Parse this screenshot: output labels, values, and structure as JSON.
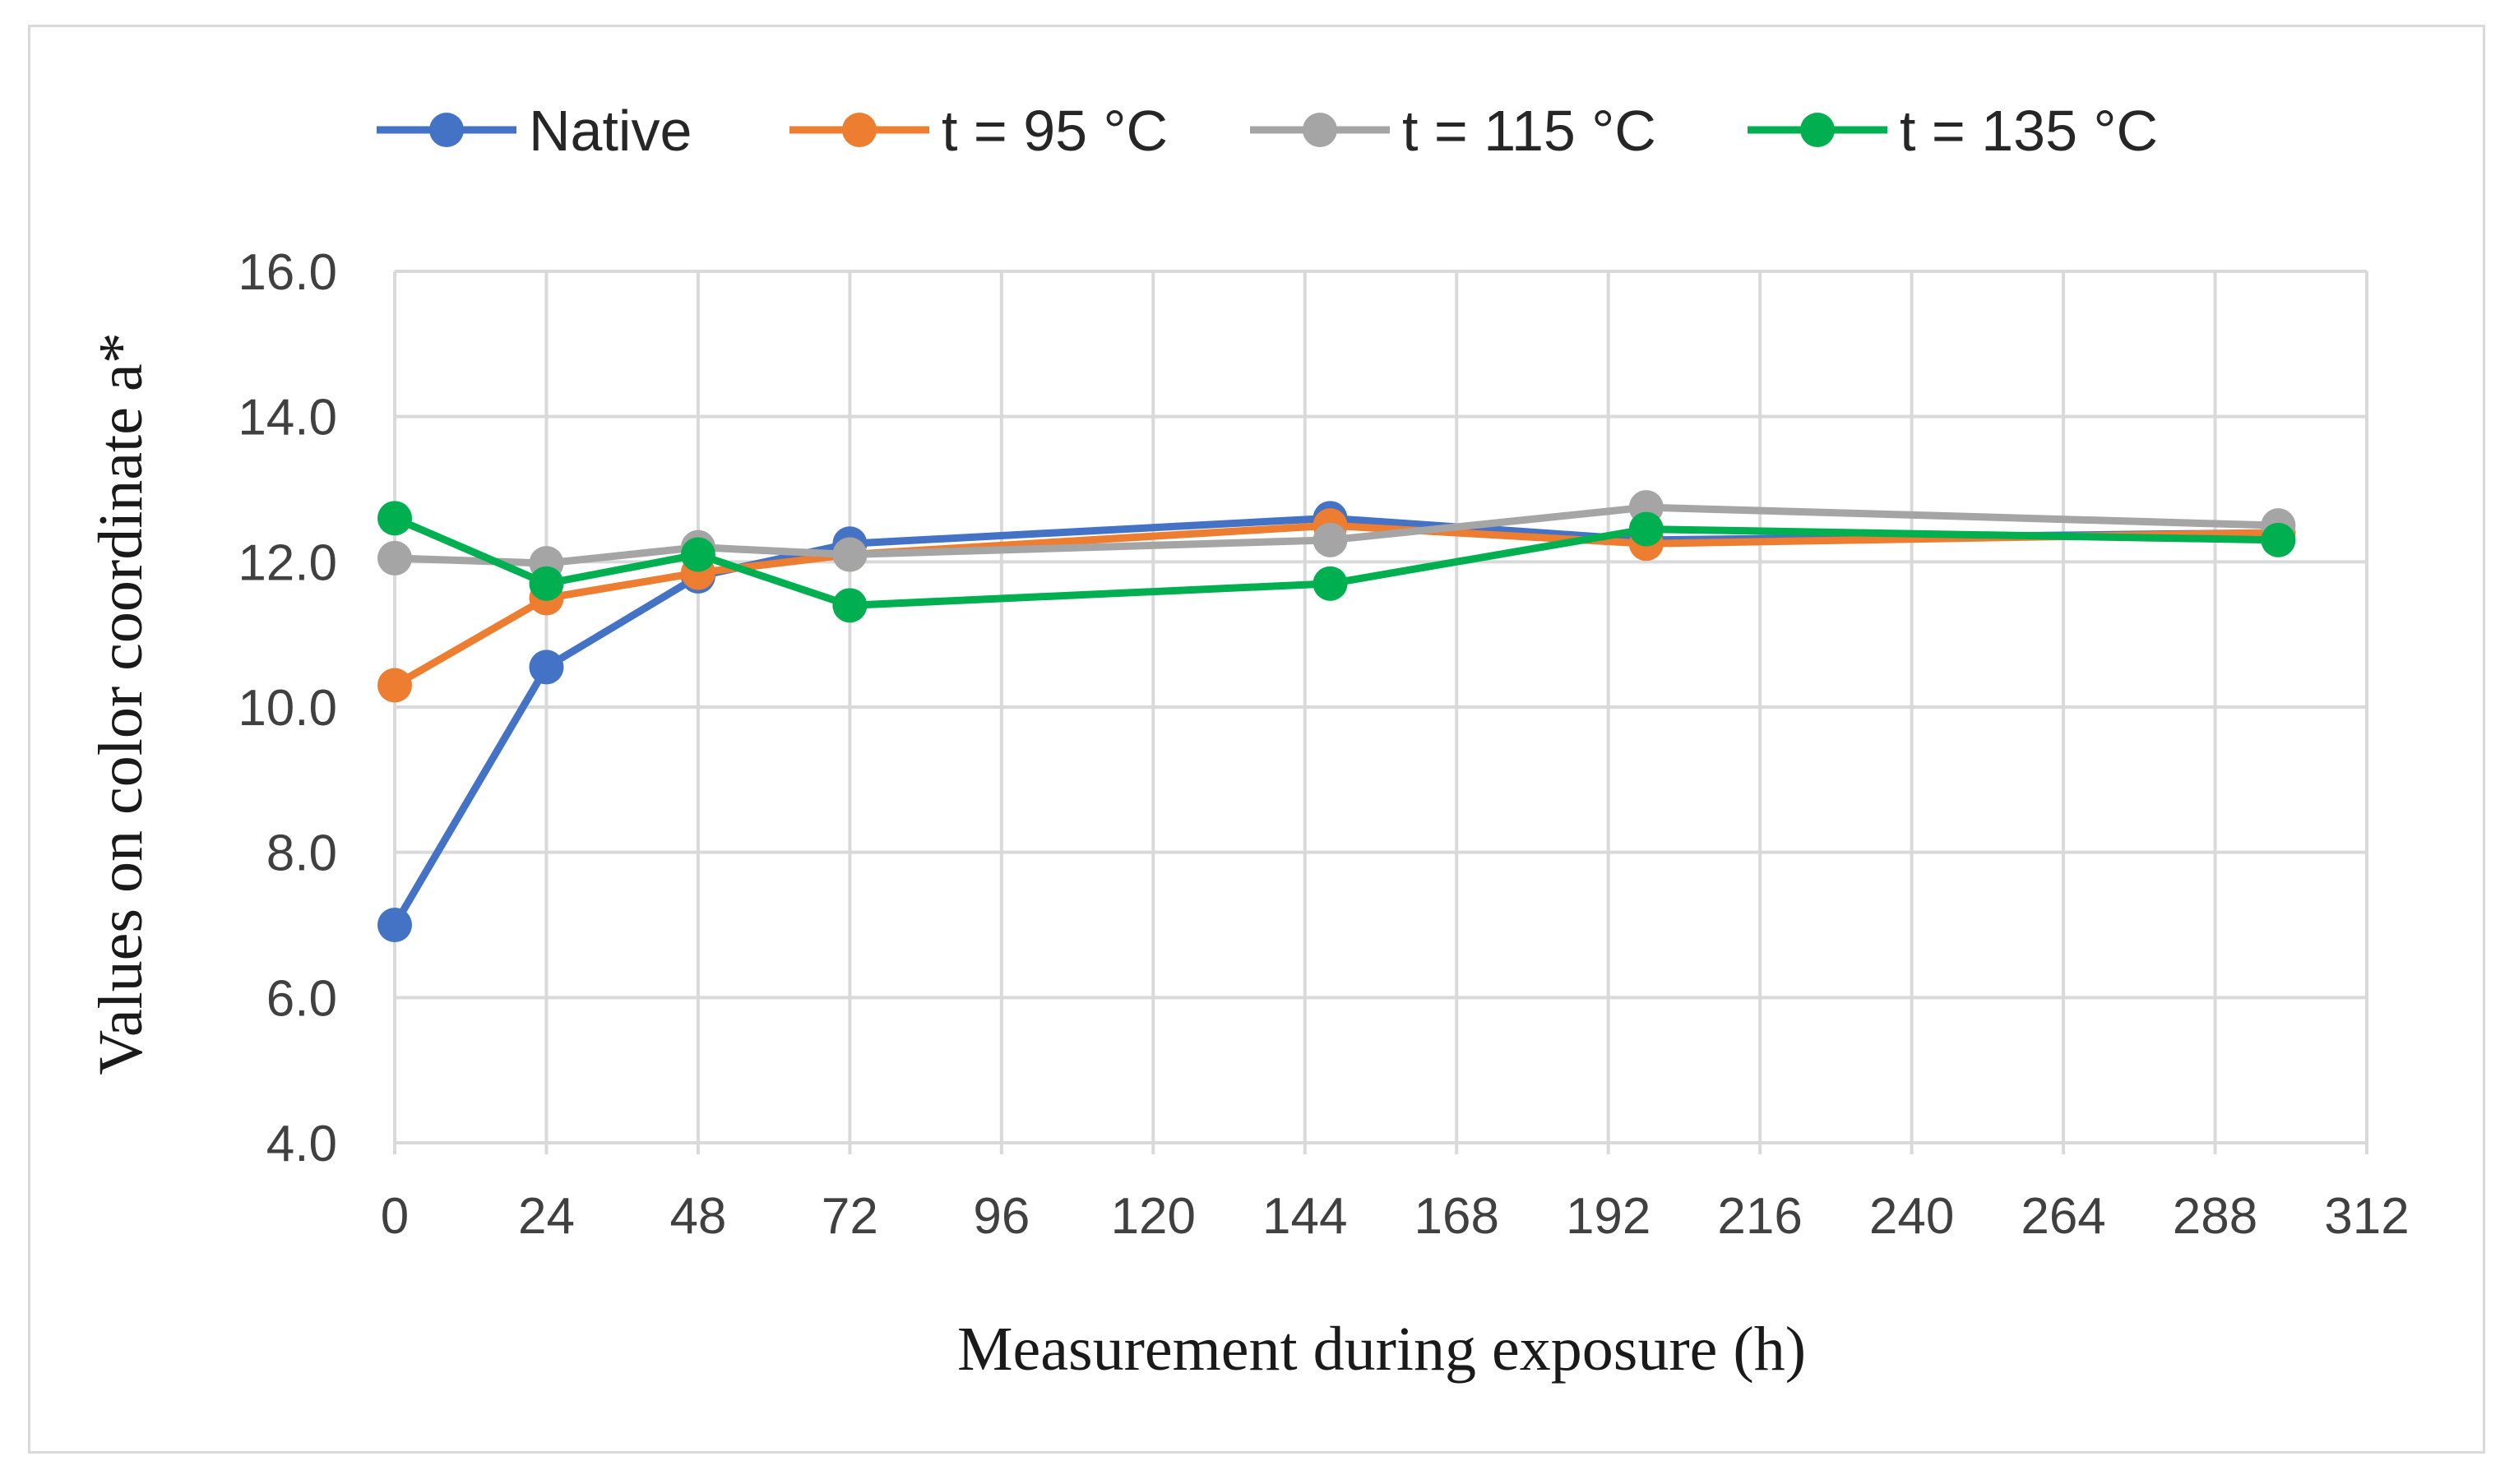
{
  "chart_data": {
    "type": "line",
    "title": "",
    "xlabel": "Measurement during exposure (h)",
    "ylabel": "Values on color coordinate a*",
    "xlim": [
      0,
      312
    ],
    "ylim": [
      4.0,
      16.0
    ],
    "x_ticks": [
      "0",
      "24",
      "48",
      "72",
      "96",
      "120",
      "144",
      "168",
      "192",
      "216",
      "240",
      "264",
      "288",
      "312"
    ],
    "y_ticks": [
      "4.0",
      "6.0",
      "8.0",
      "10.0",
      "12.0",
      "14.0",
      "16.0"
    ],
    "grid": true,
    "legend_position": "top",
    "x": [
      0,
      24,
      48,
      72,
      148,
      198,
      298
    ],
    "series": [
      {
        "name": "Native",
        "color": "#4472c4",
        "values": [
          7.0,
          10.55,
          11.8,
          12.25,
          12.6,
          12.3,
          12.4
        ]
      },
      {
        "name": "t = 95 °C",
        "color": "#ed7d31",
        "values": [
          10.3,
          11.5,
          11.85,
          12.1,
          12.5,
          12.25,
          12.4
        ]
      },
      {
        "name": "t = 115 °C",
        "color": "#a5a5a5",
        "values": [
          12.05,
          11.98,
          12.2,
          12.1,
          12.3,
          12.75,
          12.5
        ]
      },
      {
        "name": "t = 135 °C",
        "color": "#00b050",
        "values": [
          12.6,
          11.7,
          12.1,
          11.4,
          11.7,
          12.45,
          12.3
        ]
      }
    ]
  },
  "colors": {
    "grid": "#d9d9d9",
    "frame": "#d9d9d9"
  }
}
